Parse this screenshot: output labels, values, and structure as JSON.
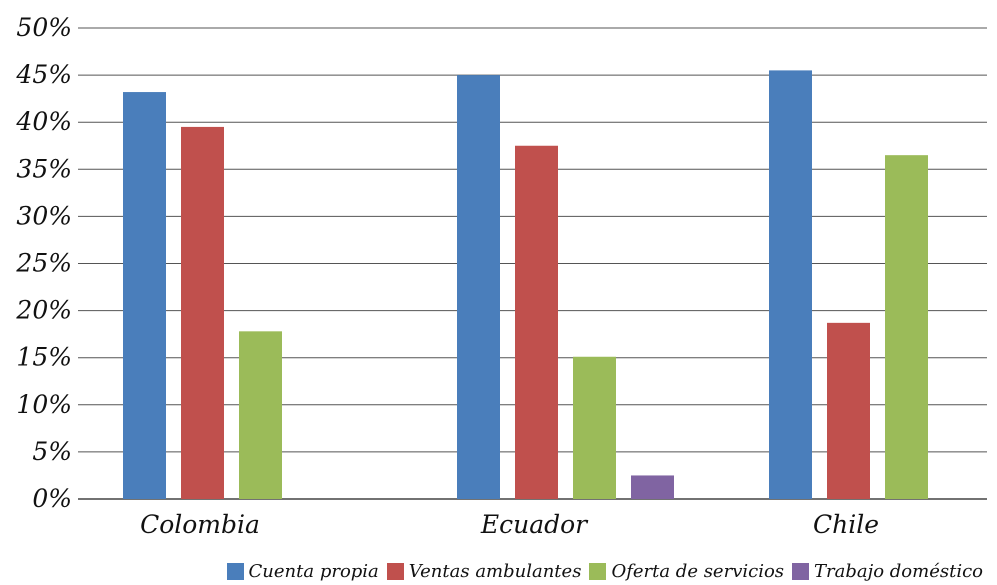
{
  "chart_data": {
    "type": "bar",
    "categories": [
      "Colombia",
      "Ecuador",
      "Chile"
    ],
    "series": [
      {
        "name": "Cuenta propia",
        "color": "#4a7ebb",
        "values": [
          43.2,
          45.0,
          45.5
        ]
      },
      {
        "name": "Ventas ambulantes",
        "color": "#c0504d",
        "values": [
          39.5,
          37.5,
          18.7
        ]
      },
      {
        "name": "Oferta de servicios",
        "color": "#9bbb59",
        "values": [
          17.8,
          15.1,
          36.5
        ]
      },
      {
        "name": "Trabajo doméstico",
        "color": "#8064a2",
        "values": [
          0,
          2.5,
          0
        ]
      }
    ],
    "ylim": [
      0,
      50
    ],
    "yticks": [
      0,
      5,
      10,
      15,
      20,
      25,
      30,
      35,
      40,
      45,
      50
    ],
    "ytick_labels": [
      "0%",
      "5%",
      "10%",
      "15%",
      "20%",
      "25%",
      "30%",
      "35%",
      "40%",
      "45%",
      "50%"
    ],
    "grid": true,
    "legend_position": "bottom"
  }
}
